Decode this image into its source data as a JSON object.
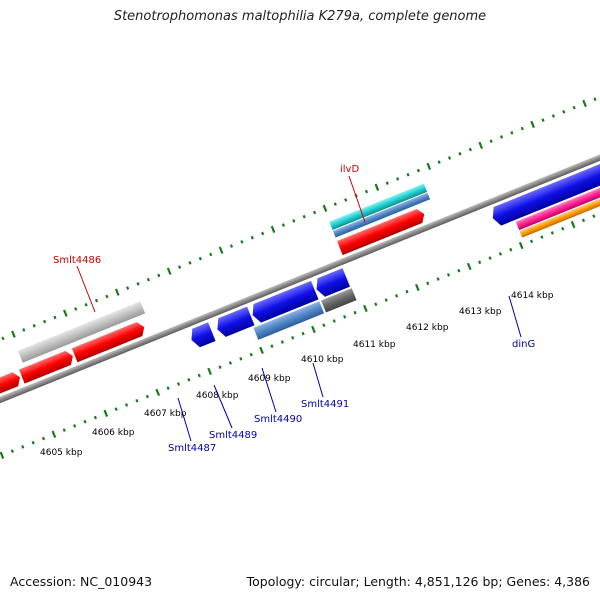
{
  "title": "Stenotrophomonas maltophilia K279a, complete genome",
  "footer": {
    "accession": "Accession: NC_010943",
    "summary": "Topology: circular; Length: 4,851,126 bp; Genes: 4,386"
  },
  "scale_labels": [
    "4605 kbp",
    "4606 kbp",
    "4607 kbp",
    "4608 kbp",
    "4609 kbp",
    "4610 kbp",
    "4611 kbp",
    "4612 kbp",
    "4613 kbp",
    "4614 kbp"
  ],
  "gene_labels_top": [
    "Smlt4486",
    "ilvD"
  ],
  "gene_labels_bottom": [
    "Smlt4487",
    "Smlt4489",
    "Smlt4490",
    "Smlt4491",
    "dinG"
  ],
  "colors": {
    "forward_cds": "#ff0000",
    "reverse_cds": "#1010e6",
    "gray_feature": "#c0c0c0",
    "dark_feature": "#666666",
    "steelblue_feature": "#4f86c6",
    "cyan_feature": "#20d0d0",
    "magenta_feature": "#ff2090",
    "orange_feature": "#ff9a00",
    "backbone": "#8a8a8a",
    "ticks": "#1a7a1a"
  }
}
